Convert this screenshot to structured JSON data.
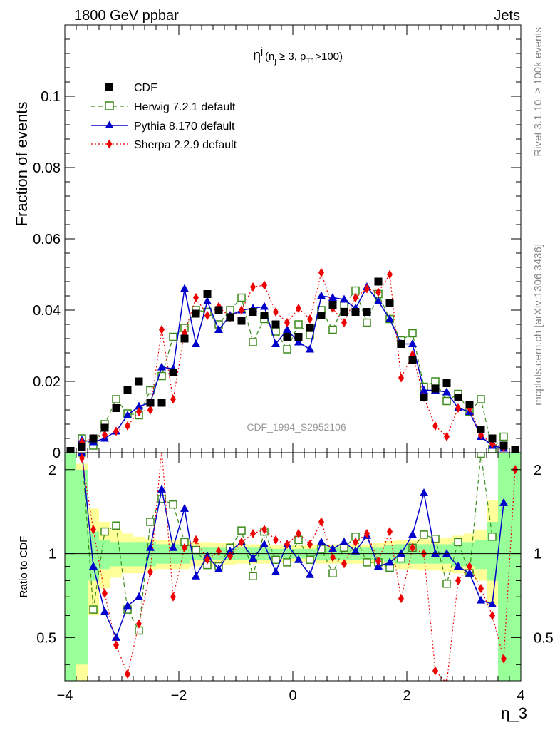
{
  "header": {
    "left": "1800 GeV ppbar",
    "right": "Jets",
    "side_top": "Rivet 3.1.10, ≥ 100k events",
    "side_bottom": "mcplots.cern.ch [arXiv:1306.3436]",
    "watermark": "CDF_1994_S2952106"
  },
  "colors": {
    "cdf": "#000000",
    "herwig": "#3a8a1a",
    "pythia": "#0000cc",
    "sherpa": "#ee0000",
    "band_inner": "#99ff99",
    "band_outer": "#ffff99"
  },
  "chart_data": [
    {
      "type": "scatter",
      "panel": "main",
      "title_parts": {
        "base": "η",
        "sup": "j",
        "paren": "(n",
        "sub1": "j",
        "mid": " ≥ 3, p",
        "sub2": "T1",
        "end": ">100)"
      },
      "ylabel": "Fraction of events",
      "xlim": [
        -4,
        4
      ],
      "ylim": [
        0,
        0.12
      ],
      "yticks": [
        {
          "v": 0,
          "label": "0"
        },
        {
          "v": 0.02,
          "label": "0.02"
        },
        {
          "v": 0.04,
          "label": "0.04"
        },
        {
          "v": 0.06,
          "label": "0.06"
        },
        {
          "v": 0.08,
          "label": "0.08"
        },
        {
          "v": 0.1,
          "label": "0.1"
        }
      ],
      "legend_placement": "top-left",
      "x": [
        -3.9,
        -3.7,
        -3.5,
        -3.3,
        -3.1,
        -2.9,
        -2.7,
        -2.5,
        -2.3,
        -2.1,
        -1.9,
        -1.7,
        -1.5,
        -1.3,
        -1.1,
        -0.9,
        -0.7,
        -0.5,
        -0.3,
        -0.1,
        0.1,
        0.3,
        0.5,
        0.7,
        0.9,
        1.1,
        1.3,
        1.5,
        1.7,
        1.9,
        2.1,
        2.3,
        2.5,
        2.7,
        2.9,
        3.1,
        3.3,
        3.5,
        3.7,
        3.9
      ],
      "series": [
        {
          "name": "CDF",
          "key": "cdf",
          "marker": "square",
          "values": [
            0.0005,
            0.0015,
            0.004,
            0.007,
            0.0125,
            0.0175,
            0.02,
            0.014,
            0.014,
            0.0225,
            0.032,
            0.039,
            0.0445,
            0.04,
            0.038,
            0.037,
            0.0395,
            0.0385,
            0.036,
            0.0325,
            0.0325,
            0.035,
            0.0385,
            0.0415,
            0.0395,
            0.0395,
            0.0395,
            0.048,
            0.042,
            0.0305,
            0.026,
            0.0155,
            0.018,
            0.0195,
            0.0155,
            0.0135,
            0.0065,
            0.004,
            0.002,
            0.0008
          ]
        },
        {
          "name": "Herwig 7.2.1 default",
          "key": "herwig",
          "marker": "open-square",
          "dash": "6,4",
          "values": [
            null,
            0.004,
            0.002,
            0.008,
            0.015,
            0.011,
            0.0105,
            0.0175,
            0.0215,
            0.0325,
            0.035,
            0.04,
            0.0395,
            0.036,
            0.04,
            0.0435,
            0.031,
            0.0375,
            0.034,
            0.029,
            0.036,
            0.033,
            0.04,
            0.0345,
            0.0415,
            0.0455,
            0.0365,
            0.0445,
            0.0375,
            0.0315,
            0.0335,
            0.0185,
            0.02,
            0.0145,
            0.0165,
            0.0115,
            0.015,
            0.001,
            0.0045,
            null
          ],
          "ratio": [
            null,
            2.3,
            0.63,
            1.2,
            1.26,
            0.63,
            0.53,
            1.3,
            1.57,
            1.5,
            1.1,
            1.03,
            0.91,
            0.9,
            1.05,
            1.21,
            0.83,
            1.2,
            0.95,
            0.93,
            1.12,
            0.95,
            1.04,
            0.85,
            1.05,
            1.15,
            0.93,
            0.93,
            0.89,
            0.96,
            1.05,
            1.17,
            1.13,
            0.78,
            1.1,
            0.85,
            2.28,
            1.15,
            null,
            null
          ]
        },
        {
          "name": "Pythia 8.170 default",
          "key": "pythia",
          "marker": "triangle",
          "values": [
            null,
            0.0035,
            0.003,
            0.004,
            0.006,
            0.0105,
            0.013,
            0.014,
            0.024,
            0.0235,
            0.046,
            0.0305,
            0.0425,
            0.0345,
            0.0385,
            0.04,
            0.0405,
            0.041,
            0.0305,
            0.0345,
            0.031,
            0.029,
            0.044,
            0.0435,
            0.043,
            0.0405,
            0.0465,
            0.0425,
            0.0375,
            0.0305,
            0.0305,
            0.0175,
            0.0175,
            0.017,
            0.0125,
            0.0115,
            0.0045,
            0.002,
            0.0012,
            null
          ],
          "ratio": [
            null,
            2.3,
            0.9,
            0.62,
            0.5,
            0.65,
            0.7,
            1.05,
            1.7,
            1.05,
            1.45,
            0.83,
            0.98,
            0.88,
            1.02,
            1.1,
            0.96,
            1.08,
            0.86,
            1.08,
            0.95,
            0.84,
            1.1,
            1.04,
            1.1,
            1.02,
            1.16,
            0.9,
            0.93,
            1.0,
            1.17,
            1.65,
            1.0,
            1.0,
            0.9,
            0.85,
            0.68,
            0.66,
            1.52,
            null
          ]
        },
        {
          "name": "Sherpa 2.2.9 default",
          "key": "sherpa",
          "marker": "diamond",
          "dash": "2,3",
          "values": [
            null,
            0.003,
            0.004,
            0.005,
            0.006,
            0.0075,
            0.0115,
            0.012,
            0.0345,
            0.015,
            0.0335,
            0.0435,
            0.0385,
            0.041,
            0.038,
            0.04,
            0.0465,
            0.047,
            0.0395,
            0.0365,
            0.0405,
            0.0375,
            0.0505,
            0.0405,
            0.0365,
            0.0435,
            0.046,
            0.045,
            0.05,
            0.021,
            0.0275,
            0.0155,
            0.0075,
            0.0045,
            0.0125,
            0.0125,
            0.005,
            0.0025,
            0.0015,
            null
          ],
          "ratio": [
            null,
            2.2,
            1.22,
            0.72,
            0.47,
            0.37,
            0.56,
            0.86,
            2.5,
            0.7,
            1.05,
            1.12,
            0.95,
            1.02,
            0.98,
            1.1,
            1.18,
            1.22,
            1.12,
            1.08,
            1.18,
            1.08,
            1.3,
            0.97,
            0.92,
            1.1,
            1.18,
            0.94,
            1.2,
            0.69,
            1.05,
            1.0,
            0.38,
            0.27,
            0.8,
            0.9,
            0.75,
            0.6,
            0.42,
            2.0
          ]
        }
      ]
    },
    {
      "type": "line",
      "panel": "ratio",
      "ylabel": "Ratio to CDF",
      "xlabel": "η_3",
      "xlim": [
        -4,
        4
      ],
      "ylim": [
        0.35,
        2.3
      ],
      "xticks": [
        {
          "v": -4,
          "label": "−4"
        },
        {
          "v": -2,
          "label": "−2"
        },
        {
          "v": 0,
          "label": "0"
        },
        {
          "v": 2,
          "label": "2"
        },
        {
          "v": 4,
          "label": "4"
        }
      ],
      "yticks": [
        {
          "v": 0.5,
          "label": "0.5"
        },
        {
          "v": 1,
          "label": "1"
        },
        {
          "v": 2,
          "label": "2"
        }
      ],
      "bands": {
        "edges": [
          -4,
          -3.8,
          -3.6,
          -3.4,
          -3.2,
          -3.0,
          -2.8,
          -2.6,
          -2.4,
          -2.2,
          -2.0,
          -1.8,
          -1.6,
          -1.4,
          -1.2,
          -1.0,
          -0.8,
          -0.6,
          -0.4,
          -0.2,
          0,
          0.2,
          0.4,
          0.6,
          0.8,
          1.0,
          1.2,
          1.4,
          1.6,
          1.8,
          2.0,
          2.2,
          2.4,
          2.6,
          2.8,
          3.0,
          3.2,
          3.4,
          3.6,
          3.8,
          4.0
        ],
        "inner": [
          [
            0.3,
            2.3
          ],
          [
            0.4,
            2.0
          ],
          [
            0.8,
            1.2
          ],
          [
            0.88,
            1.12
          ],
          [
            0.9,
            1.1
          ],
          [
            0.9,
            1.1
          ],
          [
            0.9,
            1.1
          ],
          [
            0.9,
            1.1
          ],
          [
            0.92,
            1.08
          ],
          [
            0.92,
            1.08
          ],
          [
            0.92,
            1.08
          ],
          [
            0.95,
            1.05
          ],
          [
            0.95,
            1.05
          ],
          [
            0.95,
            1.05
          ],
          [
            0.95,
            1.05
          ],
          [
            0.95,
            1.05
          ],
          [
            0.95,
            1.05
          ],
          [
            0.95,
            1.05
          ],
          [
            0.96,
            1.04
          ],
          [
            0.96,
            1.04
          ],
          [
            0.96,
            1.04
          ],
          [
            0.96,
            1.04
          ],
          [
            0.95,
            1.05
          ],
          [
            0.95,
            1.05
          ],
          [
            0.95,
            1.05
          ],
          [
            0.95,
            1.05
          ],
          [
            0.95,
            1.05
          ],
          [
            0.95,
            1.05
          ],
          [
            0.93,
            1.07
          ],
          [
            0.92,
            1.08
          ],
          [
            0.92,
            1.08
          ],
          [
            0.92,
            1.08
          ],
          [
            0.92,
            1.08
          ],
          [
            0.92,
            1.08
          ],
          [
            0.9,
            1.1
          ],
          [
            0.9,
            1.1
          ],
          [
            0.88,
            1.12
          ],
          [
            0.8,
            1.3
          ],
          [
            0.3,
            2.3
          ],
          [
            0.3,
            2.3
          ]
        ],
        "outer": [
          [
            0.3,
            2.3
          ],
          [
            0.35,
            2.1
          ],
          [
            0.6,
            1.45
          ],
          [
            0.75,
            1.3
          ],
          [
            0.82,
            1.22
          ],
          [
            0.85,
            1.18
          ],
          [
            0.85,
            1.15
          ],
          [
            0.87,
            1.13
          ],
          [
            0.88,
            1.12
          ],
          [
            0.88,
            1.12
          ],
          [
            0.88,
            1.12
          ],
          [
            0.9,
            1.1
          ],
          [
            0.9,
            1.1
          ],
          [
            0.91,
            1.09
          ],
          [
            0.91,
            1.09
          ],
          [
            0.92,
            1.08
          ],
          [
            0.92,
            1.08
          ],
          [
            0.92,
            1.08
          ],
          [
            0.93,
            1.07
          ],
          [
            0.93,
            1.07
          ],
          [
            0.93,
            1.07
          ],
          [
            0.93,
            1.07
          ],
          [
            0.92,
            1.08
          ],
          [
            0.92,
            1.08
          ],
          [
            0.92,
            1.08
          ],
          [
            0.92,
            1.08
          ],
          [
            0.92,
            1.08
          ],
          [
            0.91,
            1.09
          ],
          [
            0.89,
            1.11
          ],
          [
            0.88,
            1.12
          ],
          [
            0.88,
            1.12
          ],
          [
            0.87,
            1.13
          ],
          [
            0.87,
            1.13
          ],
          [
            0.86,
            1.14
          ],
          [
            0.85,
            1.16
          ],
          [
            0.84,
            1.18
          ],
          [
            0.8,
            1.22
          ],
          [
            0.65,
            1.55
          ],
          [
            0.3,
            2.3
          ],
          [
            0.3,
            2.3
          ]
        ]
      }
    }
  ]
}
